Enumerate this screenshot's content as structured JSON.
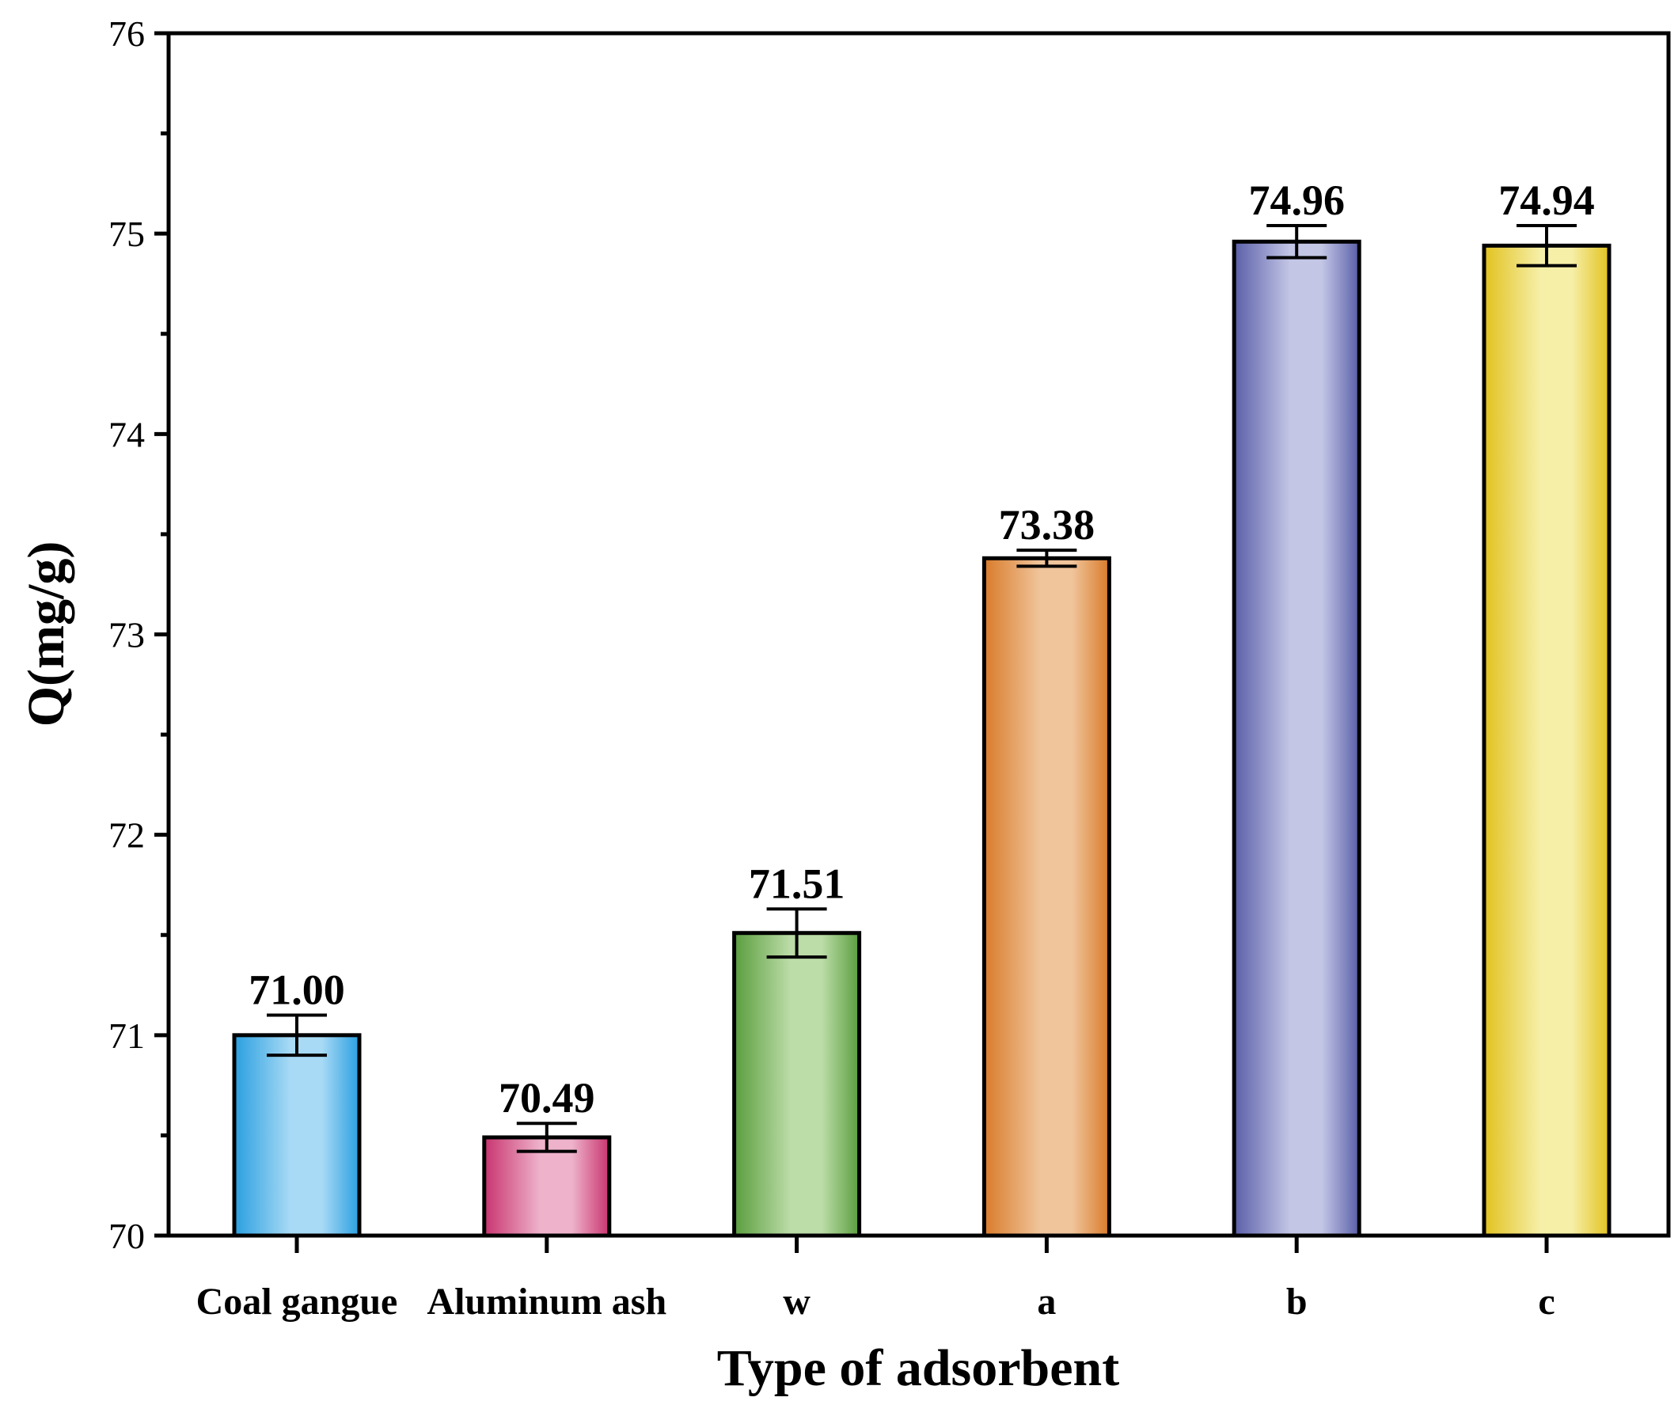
{
  "chart_data": {
    "type": "bar",
    "title": "",
    "xlabel": "Type of adsorbent",
    "ylabel": "Q(mg/g)",
    "ylim": [
      70,
      76
    ],
    "yticks": [
      70,
      71,
      72,
      73,
      74,
      75,
      76
    ],
    "categories": [
      "Coal gangue",
      "Aluminum ash",
      "w",
      "a",
      "b",
      "c"
    ],
    "values": [
      71.0,
      70.49,
      71.51,
      73.38,
      74.96,
      74.94
    ],
    "value_labels": [
      "71.00",
      "70.49",
      "71.51",
      "73.38",
      "74.96",
      "74.94"
    ],
    "errors": [
      0.1,
      0.07,
      0.12,
      0.04,
      0.08,
      0.1
    ],
    "colors": [
      {
        "dark": "#2a9fe0",
        "light": "#a8daf5"
      },
      {
        "dark": "#c8346f",
        "light": "#eeb3cb"
      },
      {
        "dark": "#5a9e3e",
        "light": "#bcdca8"
      },
      {
        "dark": "#d97b2a",
        "light": "#f0c59c"
      },
      {
        "dark": "#5a5fa8",
        "light": "#c4c6e6"
      },
      {
        "dark": "#e2c21f",
        "light": "#f6efa8"
      }
    ],
    "grid": false
  }
}
